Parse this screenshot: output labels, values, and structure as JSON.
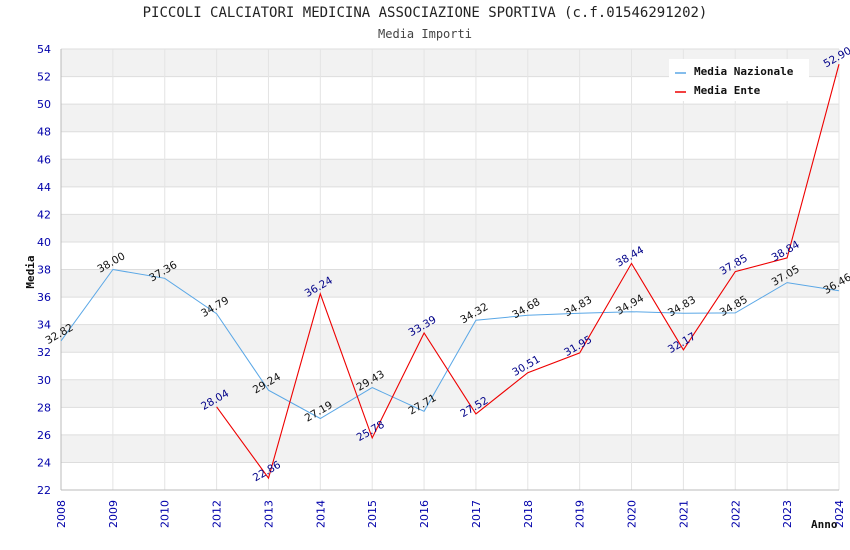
{
  "chart_data": {
    "type": "line",
    "title": "PICCOLI CALCIATORI MEDICINA ASSOCIAZIONE SPORTIVA (c.f.01546291202)",
    "subtitle": "Media Importi",
    "xlabel": "Anno",
    "ylabel": "Media",
    "categories": [
      "2008",
      "2009",
      "2010",
      "2012",
      "2013",
      "2014",
      "2015",
      "2016",
      "2017",
      "2018",
      "2019",
      "2020",
      "2021",
      "2022",
      "2023",
      "2024"
    ],
    "ylim": [
      22,
      54
    ],
    "ytick_step": 2,
    "grid": true,
    "legend_position": "top-right",
    "series": [
      {
        "name": "Media Nazionale",
        "color": "#5aa7e6",
        "values": [
          32.82,
          38.0,
          37.36,
          34.79,
          29.24,
          27.19,
          29.43,
          27.71,
          34.32,
          34.68,
          34.83,
          34.94,
          34.83,
          34.85,
          37.05,
          36.46
        ],
        "labels": [
          "32.82",
          "38.00",
          "37.36",
          "34.79",
          "29.24",
          "27.19",
          "29.43",
          "27.71",
          "34.32",
          "34.68",
          "34.83",
          "34.94",
          "34.83",
          "34.85",
          "37.05",
          "36.46"
        ]
      },
      {
        "name": "Media Ente",
        "color": "#ee0000",
        "values": [
          null,
          null,
          null,
          28.04,
          22.86,
          36.24,
          25.78,
          33.39,
          27.52,
          30.51,
          31.95,
          38.44,
          32.17,
          37.85,
          38.84,
          52.9
        ],
        "labels": [
          null,
          null,
          null,
          "28.04",
          "22.86",
          "36.24",
          "25.78",
          "33.39",
          "27.52",
          "30.51",
          "31.95",
          "38.44",
          "32.17",
          "37.85",
          "38.84",
          "52.90"
        ]
      }
    ]
  }
}
